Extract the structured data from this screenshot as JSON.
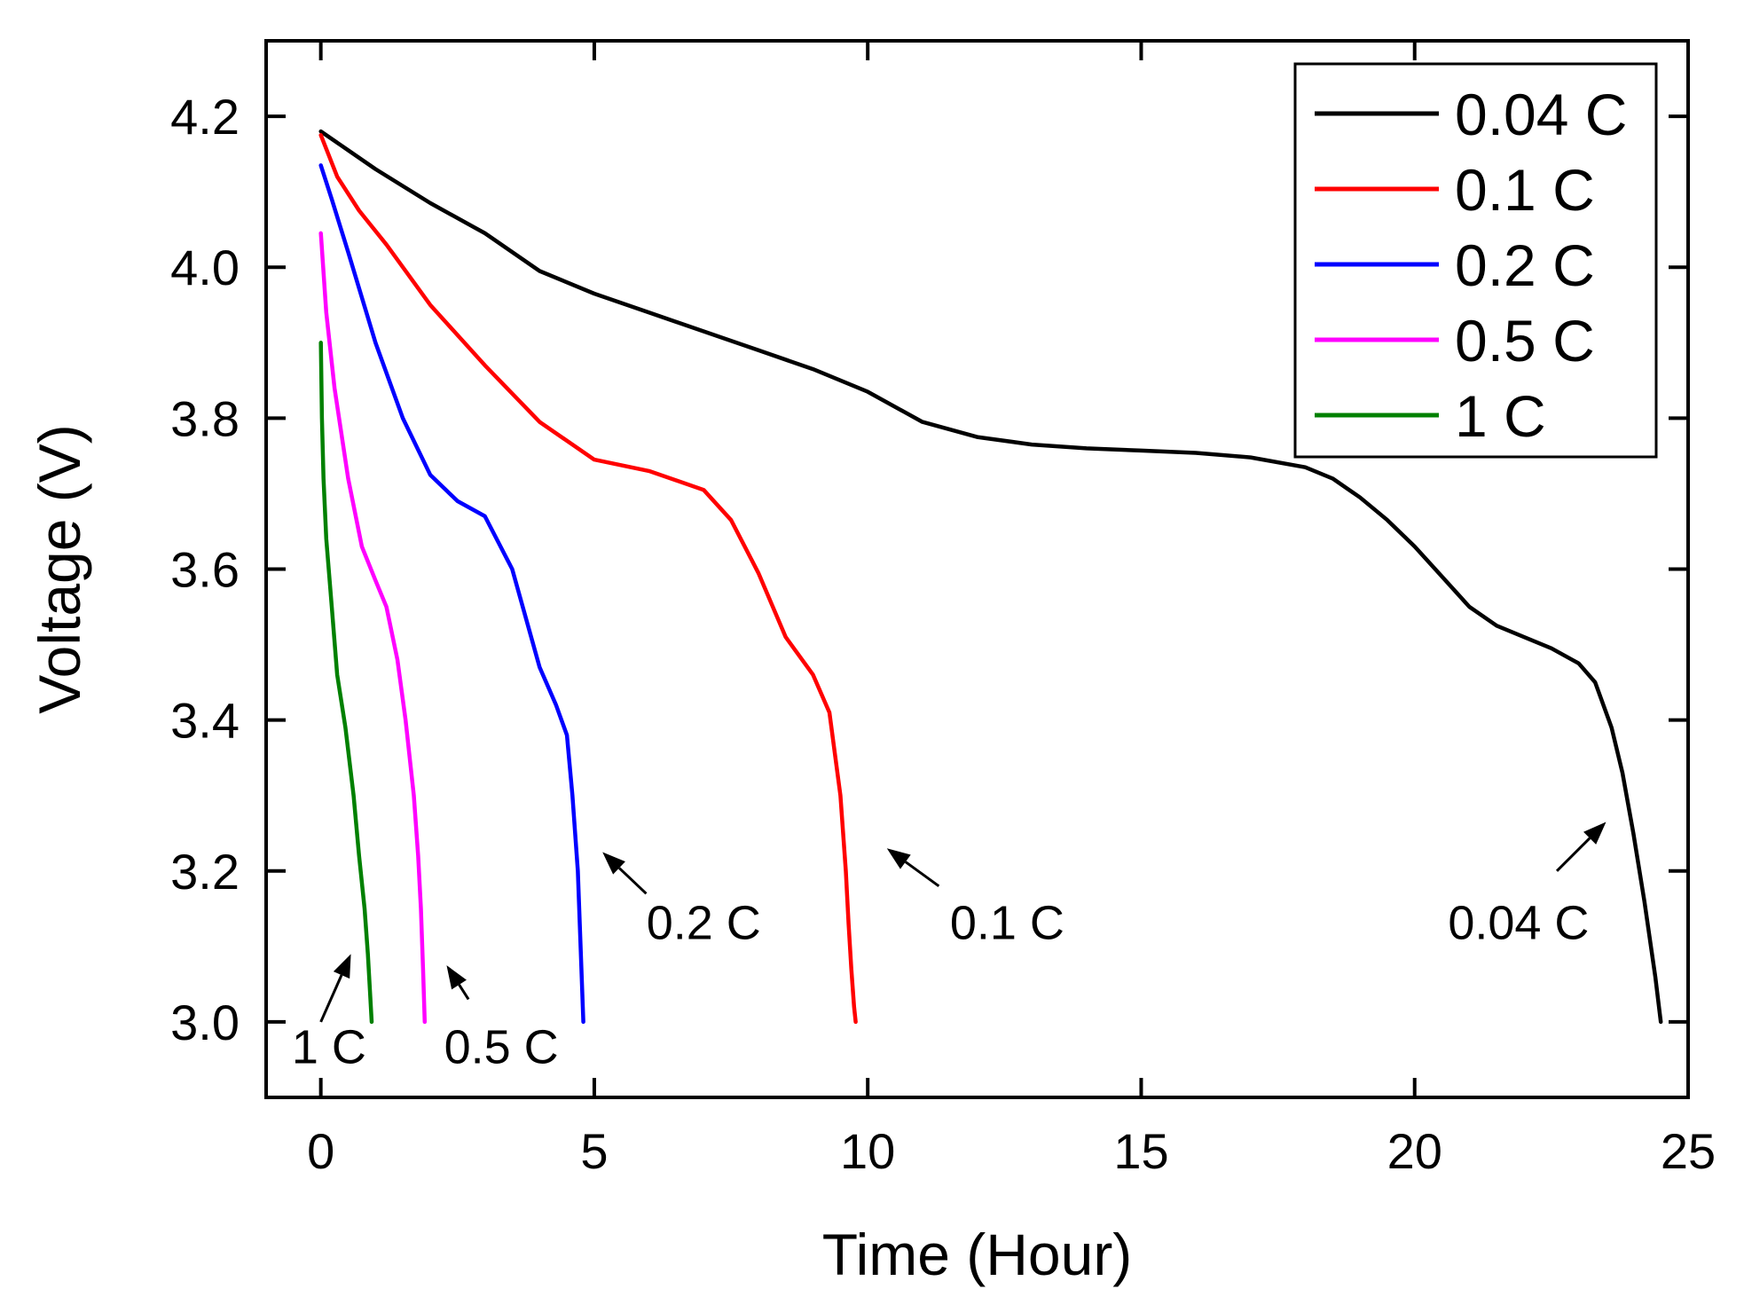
{
  "chart_data": {
    "type": "line",
    "title": "",
    "xlabel": "Time (Hour)",
    "ylabel": "Voltage (V)",
    "xlim": [
      -1,
      25
    ],
    "ylim": [
      2.9,
      4.3
    ],
    "xticks": [
      0,
      5,
      10,
      15,
      20,
      25
    ],
    "xtick_labels": [
      "0",
      "5",
      "10",
      "15",
      "20",
      "25"
    ],
    "yticks": [
      3.0,
      3.2,
      3.4,
      3.6,
      3.8,
      4.0,
      4.2
    ],
    "ytick_labels": [
      "3.0",
      "3.2",
      "3.4",
      "3.6",
      "3.8",
      "4.0",
      "4.2"
    ],
    "grid": false,
    "legend_position": "top-right",
    "series": [
      {
        "name": "0.04 C",
        "color": "#000000",
        "x": [
          0,
          0.5,
          1,
          2,
          3,
          4,
          5,
          6,
          7,
          8,
          9,
          10,
          11,
          12,
          13,
          14,
          15,
          16,
          17,
          18,
          18.5,
          19,
          19.5,
          20,
          20.5,
          21,
          21.5,
          22,
          22.5,
          23,
          23.3,
          23.6,
          23.8,
          24.0,
          24.2,
          24.4,
          24.5
        ],
        "y": [
          4.18,
          4.155,
          4.13,
          4.085,
          4.045,
          3.995,
          3.965,
          3.94,
          3.915,
          3.89,
          3.865,
          3.835,
          3.795,
          3.775,
          3.765,
          3.76,
          3.757,
          3.754,
          3.748,
          3.735,
          3.72,
          3.695,
          3.665,
          3.63,
          3.59,
          3.55,
          3.525,
          3.51,
          3.495,
          3.475,
          3.45,
          3.39,
          3.33,
          3.25,
          3.16,
          3.06,
          3.0
        ]
      },
      {
        "name": "0.1 C",
        "color": "#ff0000",
        "x": [
          0,
          0.3,
          0.7,
          1.2,
          2,
          3,
          4,
          5,
          6,
          7,
          7.5,
          8,
          8.5,
          9,
          9.3,
          9.5,
          9.6,
          9.65,
          9.7,
          9.75,
          9.78
        ],
        "y": [
          4.175,
          4.12,
          4.075,
          4.03,
          3.95,
          3.87,
          3.795,
          3.745,
          3.73,
          3.705,
          3.665,
          3.595,
          3.51,
          3.46,
          3.41,
          3.3,
          3.2,
          3.13,
          3.07,
          3.02,
          3.0
        ]
      },
      {
        "name": "0.2 C",
        "color": "#0000ff",
        "x": [
          0,
          0.2,
          0.5,
          1,
          1.5,
          2,
          2.5,
          3,
          3.5,
          4,
          4.3,
          4.5,
          4.6,
          4.7,
          4.75,
          4.8
        ],
        "y": [
          4.135,
          4.09,
          4.02,
          3.9,
          3.8,
          3.725,
          3.69,
          3.67,
          3.6,
          3.47,
          3.42,
          3.38,
          3.3,
          3.2,
          3.1,
          3.0
        ]
      },
      {
        "name": "0.5 C",
        "color": "#ff00ff",
        "x": [
          0,
          0.1,
          0.25,
          0.5,
          0.75,
          1.0,
          1.2,
          1.4,
          1.55,
          1.7,
          1.78,
          1.83,
          1.87,
          1.9
        ],
        "y": [
          4.045,
          3.94,
          3.84,
          3.72,
          3.63,
          3.585,
          3.55,
          3.48,
          3.4,
          3.3,
          3.22,
          3.15,
          3.07,
          3.0
        ]
      },
      {
        "name": "1 C",
        "color": "#008000",
        "x": [
          0,
          0.02,
          0.05,
          0.1,
          0.2,
          0.3,
          0.45,
          0.6,
          0.7,
          0.8,
          0.86,
          0.9,
          0.93
        ],
        "y": [
          3.9,
          3.8,
          3.72,
          3.64,
          3.55,
          3.46,
          3.39,
          3.3,
          3.22,
          3.15,
          3.09,
          3.04,
          3.0
        ]
      }
    ],
    "annotations": [
      {
        "text": "1 C",
        "x": 0.15,
        "y": 2.945,
        "arrow_from": [
          0.0,
          3.0
        ],
        "arrow_to": [
          0.55,
          3.09
        ]
      },
      {
        "text": "0.5 C",
        "x": 3.3,
        "y": 2.945,
        "arrow_from": [
          2.7,
          3.03
        ],
        "arrow_to": [
          2.3,
          3.075
        ]
      },
      {
        "text": "0.2 C",
        "x": 7.0,
        "y": 3.11,
        "arrow_from": [
          5.95,
          3.17
        ],
        "arrow_to": [
          5.15,
          3.225
        ]
      },
      {
        "text": "0.1 C",
        "x": 12.55,
        "y": 3.11,
        "arrow_from": [
          11.3,
          3.18
        ],
        "arrow_to": [
          10.35,
          3.23
        ]
      },
      {
        "text": "0.04 C",
        "x": 21.9,
        "y": 3.11,
        "arrow_from": [
          22.6,
          3.2
        ],
        "arrow_to": [
          23.5,
          3.265
        ]
      }
    ]
  }
}
